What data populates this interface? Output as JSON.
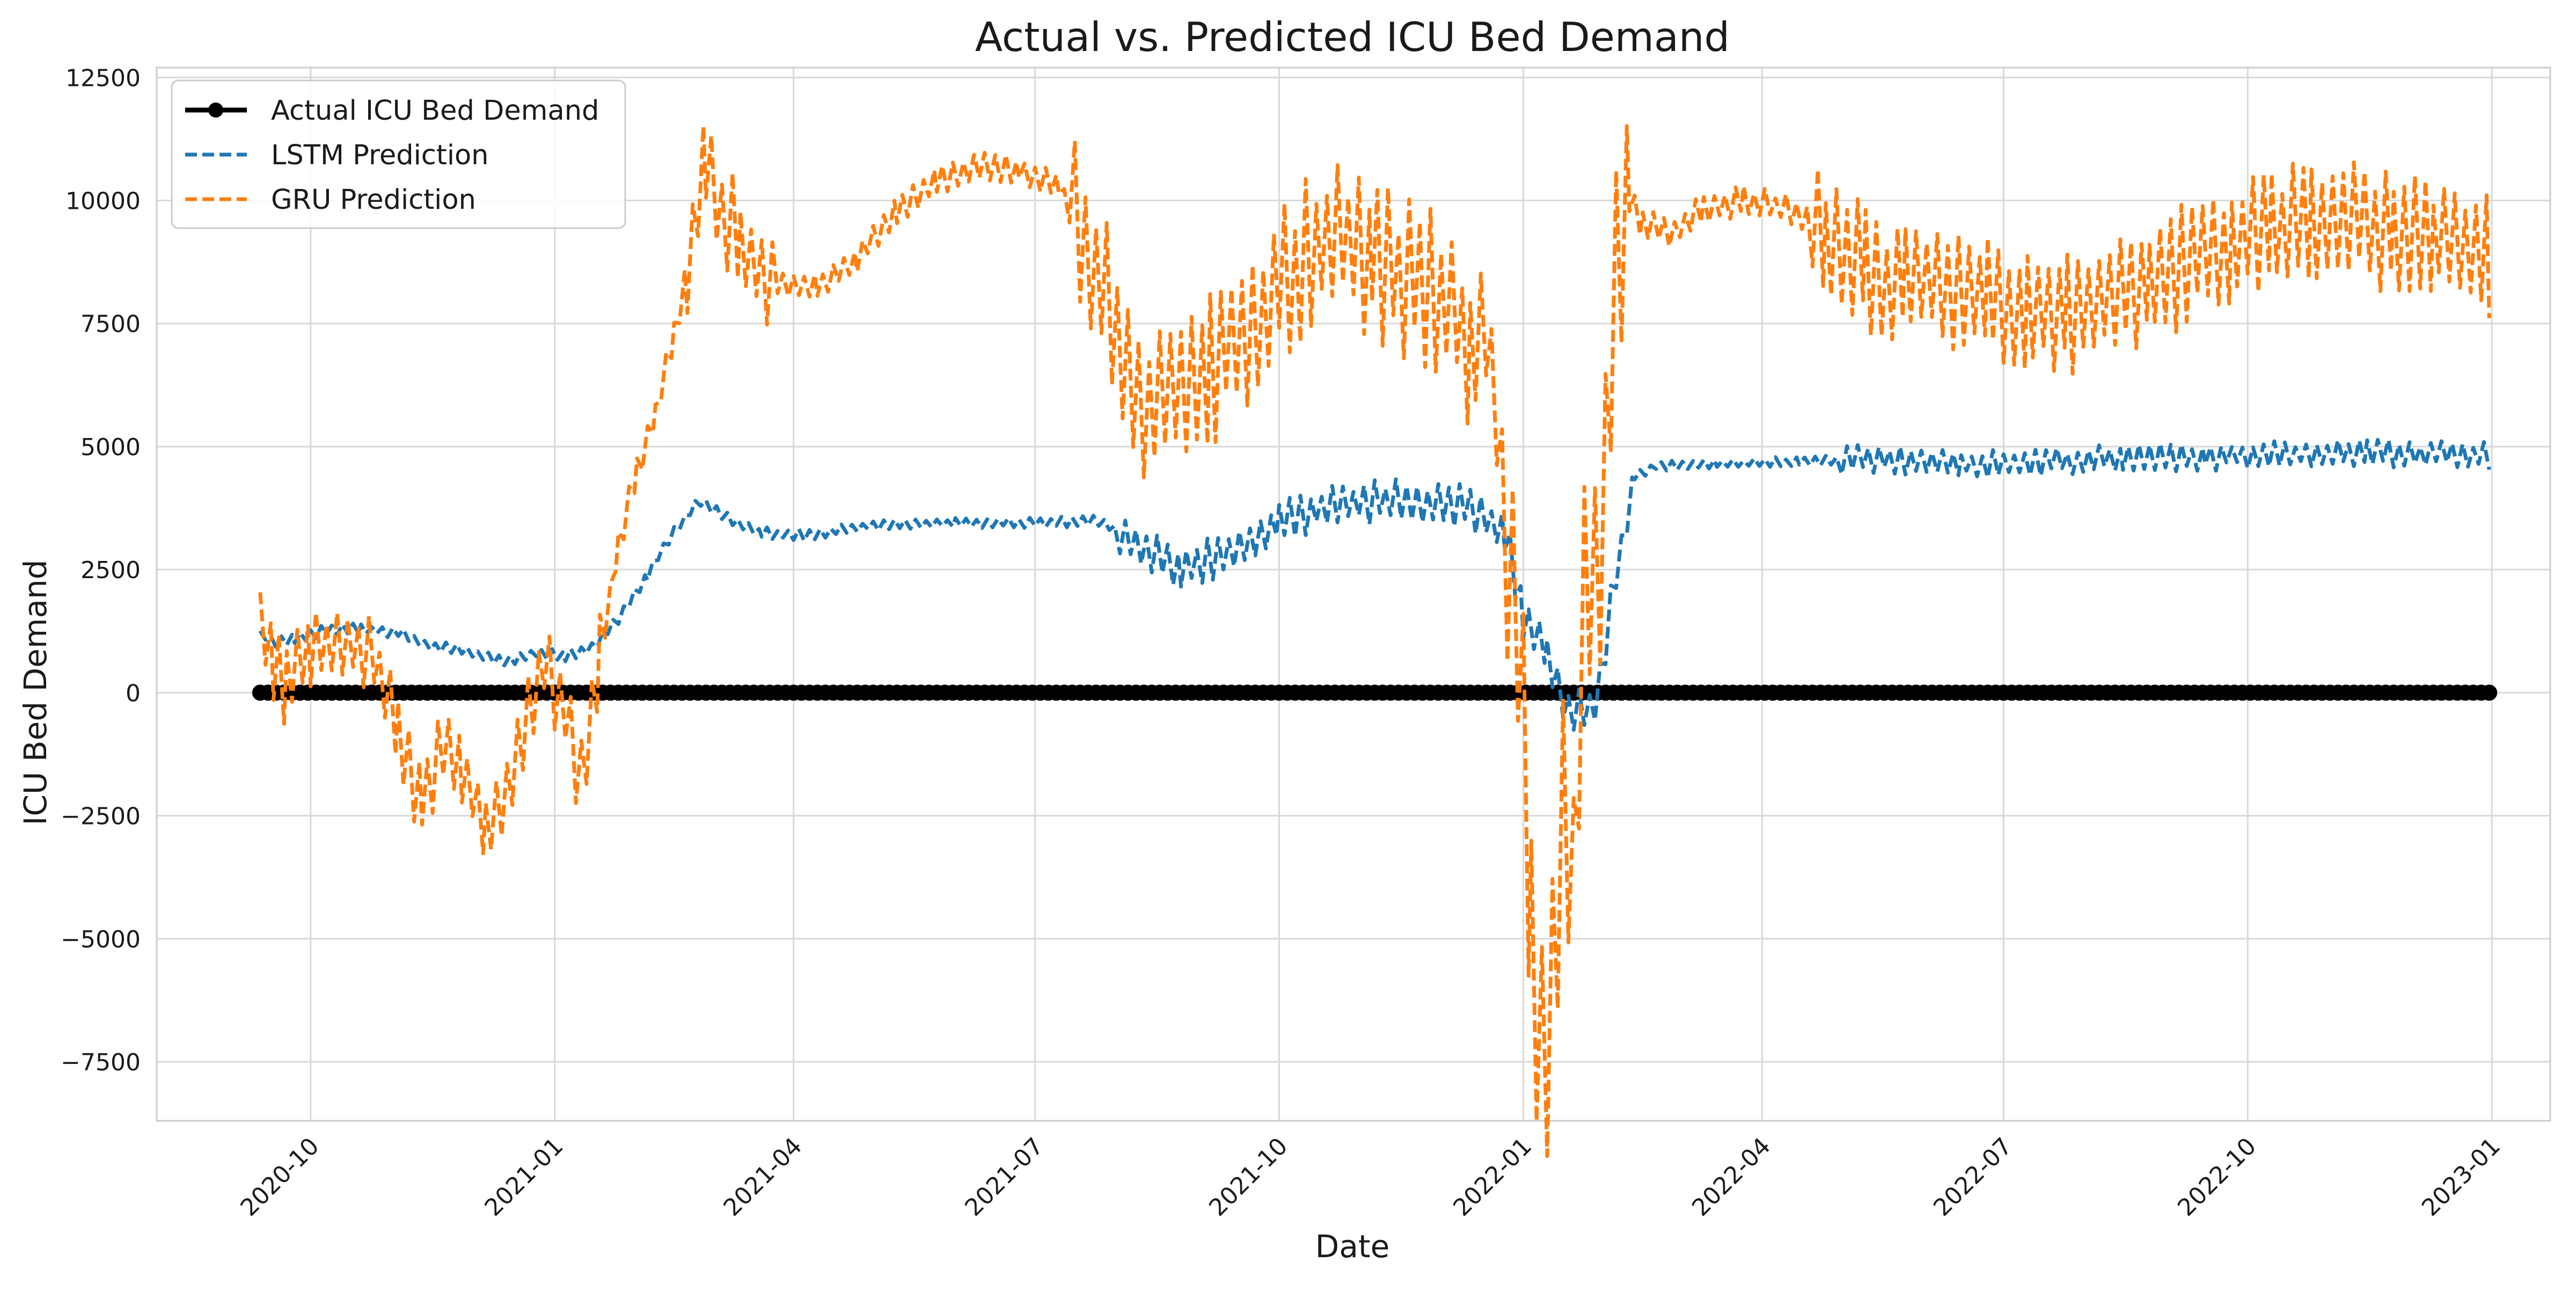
{
  "chart_data": {
    "type": "line",
    "title": "Actual vs. Predicted ICU Bed Demand",
    "xlabel": "Date",
    "ylabel": "ICU Bed Demand",
    "x_range": [
      "2020-08-04",
      "2023-01-23"
    ],
    "ylim": [
      -8700,
      12700
    ],
    "x_ticks": [
      {
        "date": "2020-10-01",
        "label": "2020-10"
      },
      {
        "date": "2021-01-01",
        "label": "2021-01"
      },
      {
        "date": "2021-04-01",
        "label": "2021-04"
      },
      {
        "date": "2021-07-01",
        "label": "2021-07"
      },
      {
        "date": "2021-10-01",
        "label": "2021-10"
      },
      {
        "date": "2022-01-01",
        "label": "2022-01"
      },
      {
        "date": "2022-04-01",
        "label": "2022-04"
      },
      {
        "date": "2022-07-01",
        "label": "2022-07"
      },
      {
        "date": "2022-10-01",
        "label": "2022-10"
      },
      {
        "date": "2023-01-01",
        "label": "2023-01"
      }
    ],
    "y_ticks": [
      {
        "value": 12500,
        "label": "12500"
      },
      {
        "value": 10000,
        "label": "10000"
      },
      {
        "value": 7500,
        "label": "7500"
      },
      {
        "value": 5000,
        "label": "5000"
      },
      {
        "value": 2500,
        "label": "2500"
      },
      {
        "value": 0,
        "label": "0"
      },
      {
        "value": -2500,
        "label": "−2500"
      },
      {
        "value": -5000,
        "label": "−5000"
      },
      {
        "value": -7500,
        "label": "−7500"
      }
    ],
    "grid": true,
    "legend_position": "top-left",
    "series": [
      {
        "name": "Actual ICU Bed Demand",
        "color": "#000000",
        "style": "solid-with-markers",
        "marker_interval_days": 3,
        "points": [
          {
            "x": "2020-09-12",
            "y": 0
          },
          {
            "x": "2022-12-31",
            "y": 0
          }
        ]
      },
      {
        "name": "LSTM Prediction",
        "color": "#1f77b4",
        "style": "dashed",
        "points": [
          {
            "x": "2020-09-12",
            "y": 1200
          },
          {
            "x": "2020-09-18",
            "y": 1000
          },
          {
            "x": "2020-09-25",
            "y": 1100
          },
          {
            "x": "2020-10-05",
            "y": 1250
          },
          {
            "x": "2020-10-20",
            "y": 1300
          },
          {
            "x": "2020-11-05",
            "y": 1200
          },
          {
            "x": "2020-11-15",
            "y": 950
          },
          {
            "x": "2020-11-25",
            "y": 900
          },
          {
            "x": "2020-12-05",
            "y": 750
          },
          {
            "x": "2020-12-15",
            "y": 650
          },
          {
            "x": "2020-12-25",
            "y": 800
          },
          {
            "x": "2021-01-05",
            "y": 750
          },
          {
            "x": "2021-01-15",
            "y": 900
          },
          {
            "x": "2021-01-25",
            "y": 1500
          },
          {
            "x": "2021-02-05",
            "y": 2400
          },
          {
            "x": "2021-02-15",
            "y": 3300
          },
          {
            "x": "2021-02-25",
            "y": 3900
          },
          {
            "x": "2021-03-05",
            "y": 3600
          },
          {
            "x": "2021-03-20",
            "y": 3250
          },
          {
            "x": "2021-04-05",
            "y": 3200
          },
          {
            "x": "2021-05-01",
            "y": 3400
          },
          {
            "x": "2021-06-01",
            "y": 3450
          },
          {
            "x": "2021-07-01",
            "y": 3450
          },
          {
            "x": "2021-07-25",
            "y": 3500
          },
          {
            "x": "2021-08-10",
            "y": 3000
          },
          {
            "x": "2021-08-25",
            "y": 2500
          },
          {
            "x": "2021-09-10",
            "y": 2800
          },
          {
            "x": "2021-10-01",
            "y": 3500
          },
          {
            "x": "2021-10-25",
            "y": 3850
          },
          {
            "x": "2021-11-20",
            "y": 3900
          },
          {
            "x": "2021-12-10",
            "y": 3800
          },
          {
            "x": "2021-12-25",
            "y": 3300
          },
          {
            "x": "2022-01-01",
            "y": 1500
          },
          {
            "x": "2022-01-10",
            "y": 800
          },
          {
            "x": "2022-01-18",
            "y": -500
          },
          {
            "x": "2022-01-28",
            "y": -300
          },
          {
            "x": "2022-02-05",
            "y": 2400
          },
          {
            "x": "2022-02-12",
            "y": 4400
          },
          {
            "x": "2022-02-20",
            "y": 4600
          },
          {
            "x": "2022-03-15",
            "y": 4650
          },
          {
            "x": "2022-04-15",
            "y": 4700
          },
          {
            "x": "2022-05-15",
            "y": 4750
          },
          {
            "x": "2022-06-15",
            "y": 4650
          },
          {
            "x": "2022-07-15",
            "y": 4700
          },
          {
            "x": "2022-08-15",
            "y": 4750
          },
          {
            "x": "2022-09-15",
            "y": 4800
          },
          {
            "x": "2022-10-15",
            "y": 4850
          },
          {
            "x": "2022-11-15",
            "y": 4850
          },
          {
            "x": "2022-12-15",
            "y": 4850
          },
          {
            "x": "2022-12-31",
            "y": 4800
          }
        ]
      },
      {
        "name": "GRU Prediction",
        "color": "#ff7f0e",
        "style": "dashed",
        "points": [
          {
            "x": "2020-09-12",
            "y": 1500
          },
          {
            "x": "2020-09-17",
            "y": 700
          },
          {
            "x": "2020-09-22",
            "y": 100
          },
          {
            "x": "2020-10-01",
            "y": 900
          },
          {
            "x": "2020-10-15",
            "y": 1000
          },
          {
            "x": "2020-10-25",
            "y": 700
          },
          {
            "x": "2020-11-03",
            "y": -1000
          },
          {
            "x": "2020-11-12",
            "y": -2200
          },
          {
            "x": "2020-11-20",
            "y": -1200
          },
          {
            "x": "2020-11-27",
            "y": -1500
          },
          {
            "x": "2020-12-06",
            "y": -2800
          },
          {
            "x": "2020-12-14",
            "y": -2000
          },
          {
            "x": "2020-12-22",
            "y": -500
          },
          {
            "x": "2020-12-28",
            "y": 800
          },
          {
            "x": "2021-01-05",
            "y": -500
          },
          {
            "x": "2021-01-11",
            "y": -1800
          },
          {
            "x": "2021-01-18",
            "y": 800
          },
          {
            "x": "2021-01-25",
            "y": 3000
          },
          {
            "x": "2021-02-01",
            "y": 4500
          },
          {
            "x": "2021-02-08",
            "y": 5700
          },
          {
            "x": "2021-02-15",
            "y": 7300
          },
          {
            "x": "2021-02-20",
            "y": 8500
          },
          {
            "x": "2021-02-27",
            "y": 10800
          },
          {
            "x": "2021-03-05",
            "y": 9800
          },
          {
            "x": "2021-03-12",
            "y": 9200
          },
          {
            "x": "2021-03-20",
            "y": 8600
          },
          {
            "x": "2021-03-28",
            "y": 8300
          },
          {
            "x": "2021-04-10",
            "y": 8200
          },
          {
            "x": "2021-04-25",
            "y": 8800
          },
          {
            "x": "2021-05-10",
            "y": 9800
          },
          {
            "x": "2021-05-25",
            "y": 10400
          },
          {
            "x": "2021-06-10",
            "y": 10700
          },
          {
            "x": "2021-06-25",
            "y": 10600
          },
          {
            "x": "2021-07-10",
            "y": 10300
          },
          {
            "x": "2021-07-20",
            "y": 9000
          },
          {
            "x": "2021-07-28",
            "y": 8000
          },
          {
            "x": "2021-08-05",
            "y": 6200
          },
          {
            "x": "2021-08-15",
            "y": 5800
          },
          {
            "x": "2021-08-25",
            "y": 6000
          },
          {
            "x": "2021-09-05",
            "y": 6500
          },
          {
            "x": "2021-09-15",
            "y": 7200
          },
          {
            "x": "2021-09-25",
            "y": 7800
          },
          {
            "x": "2021-10-05",
            "y": 8500
          },
          {
            "x": "2021-10-15",
            "y": 9000
          },
          {
            "x": "2021-10-25",
            "y": 9200
          },
          {
            "x": "2021-11-05",
            "y": 8900
          },
          {
            "x": "2021-11-15",
            "y": 8500
          },
          {
            "x": "2021-11-25",
            "y": 8300
          },
          {
            "x": "2021-12-05",
            "y": 7800
          },
          {
            "x": "2021-12-12",
            "y": 7000
          },
          {
            "x": "2021-12-18",
            "y": 7500
          },
          {
            "x": "2021-12-24",
            "y": 4500
          },
          {
            "x": "2021-12-30",
            "y": 1000
          },
          {
            "x": "2022-01-04",
            "y": -4500
          },
          {
            "x": "2022-01-08",
            "y": -7000
          },
          {
            "x": "2022-01-12",
            "y": -5500
          },
          {
            "x": "2022-01-16",
            "y": -3000
          },
          {
            "x": "2022-01-20",
            "y": -4000
          },
          {
            "x": "2022-01-24",
            "y": 1500
          },
          {
            "x": "2022-01-28",
            "y": 2500
          },
          {
            "x": "2022-02-01",
            "y": 5000
          },
          {
            "x": "2022-02-05",
            "y": 8500
          },
          {
            "x": "2022-02-10",
            "y": 10000
          },
          {
            "x": "2022-02-15",
            "y": 9500
          },
          {
            "x": "2022-02-25",
            "y": 9300
          },
          {
            "x": "2022-03-10",
            "y": 9800
          },
          {
            "x": "2022-03-25",
            "y": 10000
          },
          {
            "x": "2022-04-10",
            "y": 9800
          },
          {
            "x": "2022-04-25",
            "y": 9300
          },
          {
            "x": "2022-05-10",
            "y": 8600
          },
          {
            "x": "2022-05-25",
            "y": 8200
          },
          {
            "x": "2022-06-10",
            "y": 8300
          },
          {
            "x": "2022-06-25",
            "y": 8000
          },
          {
            "x": "2022-07-10",
            "y": 7800
          },
          {
            "x": "2022-07-25",
            "y": 7700
          },
          {
            "x": "2022-08-10",
            "y": 7900
          },
          {
            "x": "2022-08-25",
            "y": 8300
          },
          {
            "x": "2022-09-10",
            "y": 8800
          },
          {
            "x": "2022-09-25",
            "y": 9200
          },
          {
            "x": "2022-10-10",
            "y": 9500
          },
          {
            "x": "2022-10-25",
            "y": 9600
          },
          {
            "x": "2022-11-10",
            "y": 9500
          },
          {
            "x": "2022-11-25",
            "y": 9400
          },
          {
            "x": "2022-12-10",
            "y": 9200
          },
          {
            "x": "2022-12-20",
            "y": 9000
          },
          {
            "x": "2022-12-31",
            "y": 8800
          }
        ]
      }
    ]
  }
}
